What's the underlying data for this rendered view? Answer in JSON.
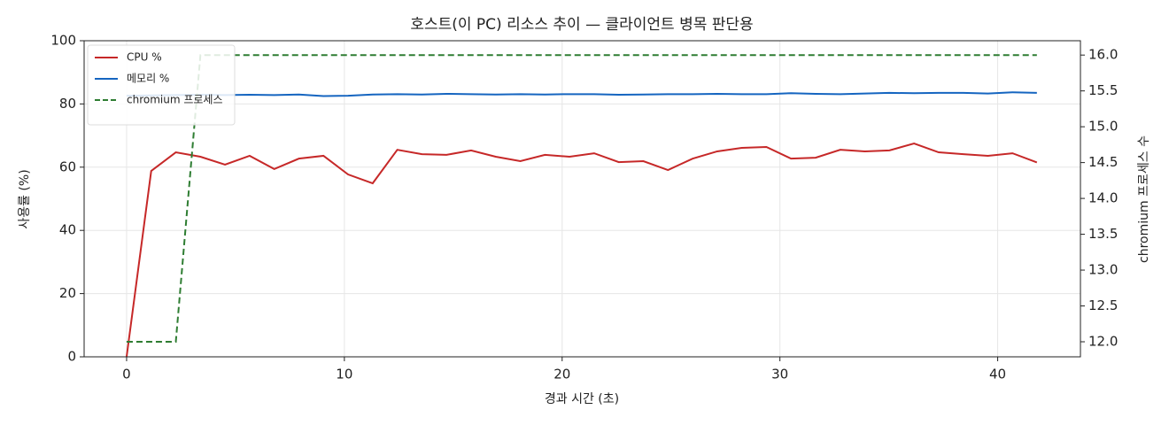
{
  "chart_data": {
    "type": "line",
    "title": "호스트(이 PC) 리소스 추이 — 클라이언트 병목 판단용",
    "xlabel": "경과 시간 (초)",
    "ylabel": "사용률 (%)",
    "y2label": "chromium 프로세스 수",
    "x": [
      0,
      1.13,
      2.26,
      3.39,
      4.52,
      5.65,
      6.78,
      7.91,
      9.04,
      10.17,
      11.3,
      12.43,
      13.56,
      14.69,
      15.82,
      16.95,
      18.08,
      19.21,
      20.34,
      21.47,
      22.6,
      23.73,
      24.86,
      25.99,
      27.12,
      28.25,
      29.38,
      30.51,
      31.64,
      32.77,
      33.9,
      35.03,
      36.16,
      37.29,
      38.42,
      39.55,
      40.68,
      41.8
    ],
    "series": [
      {
        "name": "CPU %",
        "color": "#c62828",
        "linestyle": "solid",
        "values": [
          0,
          58.8,
          64.7,
          63.3,
          60.8,
          63.6,
          59.4,
          62.7,
          63.6,
          57.7,
          54.9,
          65.5,
          64.1,
          63.9,
          65.3,
          63.3,
          61.9,
          63.9,
          63.3,
          64.4,
          61.6,
          61.9,
          59.1,
          62.7,
          65.0,
          66.1,
          66.4,
          62.7,
          63.0,
          65.5,
          65.0,
          65.3,
          67.5,
          64.7,
          64.1,
          63.6,
          64.4,
          61.5
        ]
      },
      {
        "name": "메모리 %",
        "color": "#1565c0",
        "linestyle": "solid",
        "values": [
          82.6,
          82.7,
          82.8,
          82.9,
          82.8,
          82.9,
          82.8,
          83.0,
          82.5,
          82.6,
          83.0,
          83.1,
          83.0,
          83.2,
          83.1,
          83.0,
          83.1,
          83.0,
          83.1,
          83.1,
          82.9,
          83.0,
          83.1,
          83.1,
          83.2,
          83.1,
          83.1,
          83.4,
          83.2,
          83.1,
          83.3,
          83.5,
          83.4,
          83.5,
          83.5,
          83.3,
          83.7,
          83.5
        ]
      },
      {
        "name": "chromium 프로세스",
        "color": "#2e7d32",
        "linestyle": "dashed",
        "axis": "y2",
        "values": [
          12,
          12,
          12,
          16,
          16,
          16,
          16,
          16,
          16,
          16,
          16,
          16,
          16,
          16,
          16,
          16,
          16,
          16,
          16,
          16,
          16,
          16,
          16,
          16,
          16,
          16,
          16,
          16,
          16,
          16,
          16,
          16,
          16,
          16,
          16,
          16,
          16,
          16
        ]
      }
    ],
    "xlim": [
      -1.95,
      43.8
    ],
    "xticks": [
      0,
      10,
      20,
      30,
      40
    ],
    "ylim": [
      0,
      100
    ],
    "yticks": [
      0,
      20,
      40,
      60,
      80,
      100
    ],
    "y2lim": [
      11.79,
      16.2
    ],
    "y2ticks": [
      {
        "value": 12,
        "label": "12.0"
      },
      {
        "value": 12.5,
        "label": "12.5"
      },
      {
        "value": 13,
        "label": "13.0"
      },
      {
        "value": 13.5,
        "label": "13.5"
      },
      {
        "value": 14,
        "label": "14.0"
      },
      {
        "value": 14.5,
        "label": "14.5"
      },
      {
        "value": 15,
        "label": "15.0"
      },
      {
        "value": 15.5,
        "label": "15.5"
      },
      {
        "value": 16,
        "label": "16.0"
      }
    ],
    "grid": true,
    "legend": "upper left"
  }
}
